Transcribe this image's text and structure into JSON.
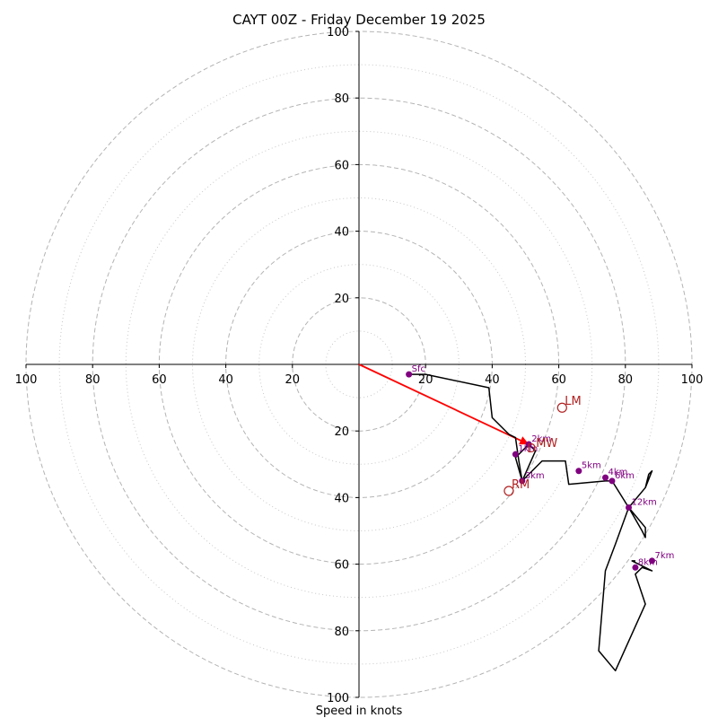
{
  "chart_data": {
    "type": "hodograph",
    "title": "CAYT 00Z - Friday December 19 2025",
    "xlabel": "Speed in knots",
    "range": [
      -100,
      100
    ],
    "ring_major": [
      20,
      40,
      60,
      80,
      100
    ],
    "ring_minor": [
      10,
      30,
      50,
      70,
      90
    ],
    "ticks_x": [
      {
        "value": -100,
        "label": "100"
      },
      {
        "value": -80,
        "label": "80"
      },
      {
        "value": -60,
        "label": "60"
      },
      {
        "value": -40,
        "label": "40"
      },
      {
        "value": -20,
        "label": "20"
      },
      {
        "value": 20,
        "label": "20"
      },
      {
        "value": 40,
        "label": "40"
      },
      {
        "value": 60,
        "label": "60"
      },
      {
        "value": 80,
        "label": "80"
      },
      {
        "value": 100,
        "label": "100"
      }
    ],
    "ticks_y": [
      {
        "value": 100,
        "label": "100"
      },
      {
        "value": 80,
        "label": "80"
      },
      {
        "value": 60,
        "label": "60"
      },
      {
        "value": 40,
        "label": "40"
      },
      {
        "value": 20,
        "label": "20"
      },
      {
        "value": -20,
        "label": "20"
      },
      {
        "value": -40,
        "label": "40"
      },
      {
        "value": -60,
        "label": "60"
      },
      {
        "value": -80,
        "label": "80"
      },
      {
        "value": -100,
        "label": "100"
      }
    ],
    "trace_color": "#000000",
    "trace": [
      [
        15,
        -3
      ],
      [
        20,
        -3
      ],
      [
        39,
        -7
      ],
      [
        40,
        -16
      ],
      [
        45,
        -21
      ],
      [
        47,
        -22
      ],
      [
        48,
        -29
      ],
      [
        49,
        -35
      ],
      [
        53,
        -26
      ],
      [
        51,
        -24
      ],
      [
        47,
        -28
      ],
      [
        49,
        -35
      ],
      [
        55,
        -29
      ],
      [
        62,
        -29
      ],
      [
        63,
        -36
      ],
      [
        74,
        -35
      ],
      [
        76,
        -35
      ],
      [
        81,
        -43
      ],
      [
        86,
        -37
      ],
      [
        88,
        -32
      ],
      [
        87,
        -33
      ],
      [
        86,
        -37
      ],
      [
        81,
        -43
      ],
      [
        85,
        -50
      ],
      [
        86,
        -52
      ],
      [
        86,
        -49
      ],
      [
        81,
        -43
      ],
      [
        77,
        -54
      ],
      [
        74,
        -62
      ],
      [
        72,
        -86
      ],
      [
        77,
        -92
      ],
      [
        86,
        -72
      ],
      [
        83,
        -63
      ],
      [
        85,
        -61
      ],
      [
        88,
        -62
      ],
      [
        82,
        -59
      ],
      [
        83,
        -59
      ]
    ],
    "height_color": "#800080",
    "height_markers": [
      {
        "label": "Sfc",
        "u": 15,
        "v": -3
      },
      {
        "label": "1km",
        "u": 47,
        "v": -27
      },
      {
        "label": "2km",
        "u": 51,
        "v": -24
      },
      {
        "label": "3km",
        "u": 49,
        "v": -35
      },
      {
        "label": "4km",
        "u": 74,
        "v": -34
      },
      {
        "label": "5km",
        "u": 66,
        "v": -32
      },
      {
        "label": "6km",
        "u": 76,
        "v": -35
      },
      {
        "label": "7km",
        "u": 88,
        "v": -59
      },
      {
        "label": "8km",
        "u": 83,
        "v": -61
      },
      {
        "label": "12km",
        "u": 81,
        "v": -43
      }
    ],
    "storm_color": "#b22222",
    "storm_markers": [
      {
        "label": "LM",
        "u": 61,
        "v": -13
      },
      {
        "label": "RM",
        "u": 45,
        "v": -38
      },
      {
        "label": "MW",
        "u": 51,
        "v": -24
      },
      {
        "label": "D",
        "u": 51,
        "v": -24
      }
    ],
    "shear_vector": {
      "from": [
        0,
        0
      ],
      "to": [
        51,
        -24
      ],
      "color": "#ff0000"
    }
  }
}
